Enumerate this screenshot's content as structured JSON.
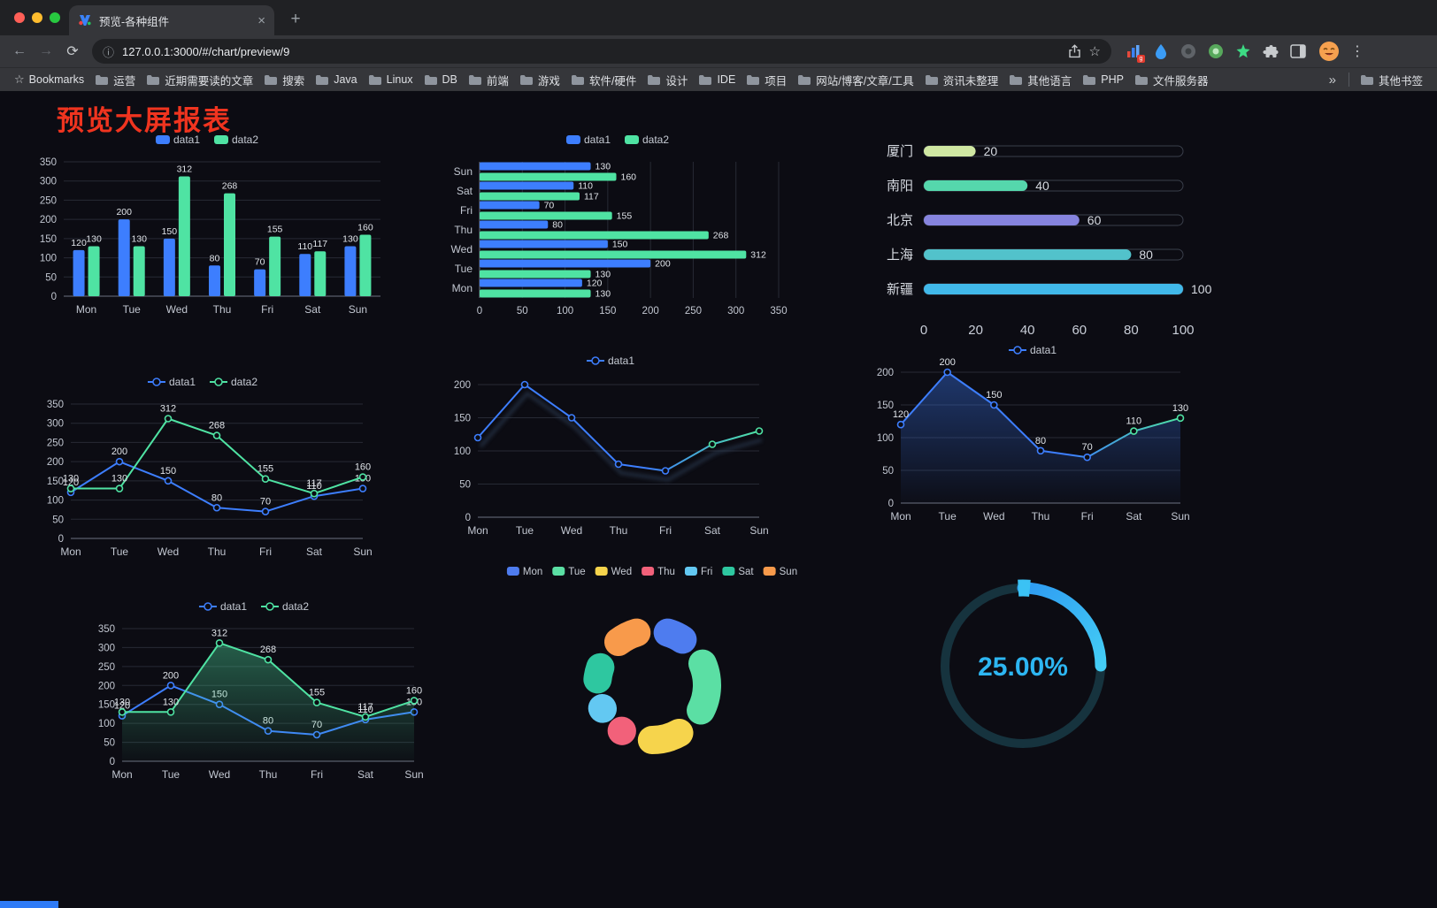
{
  "browser": {
    "tab_title": "预览-各种组件",
    "url": "127.0.0.1:3000/#/chart/preview/9",
    "icons": {
      "back": "←",
      "forward": "→",
      "reload": "⟳",
      "info": "ⓘ",
      "star": "☆",
      "menu": "⋮",
      "overflow": "»",
      "close": "×",
      "new_tab": "+"
    },
    "bookmarks_bar": {
      "label": "Bookmarks",
      "folders": [
        "运营",
        "近期需要读的文章",
        "搜索",
        "Java",
        "Linux",
        "DB",
        "前端",
        "游戏",
        "软件/硬件",
        "设计",
        "IDE",
        "项目",
        "网站/博客/文章/工具",
        "资讯未整理",
        "其他语言",
        "PHP",
        "文件服务器"
      ],
      "other": "其他书签"
    }
  },
  "page": {
    "title": "预览大屏报表",
    "title_color": "#f0341f"
  },
  "chart_data": [
    {
      "id": "bar-vertical",
      "type": "bar",
      "categories": [
        "Mon",
        "Tue",
        "Wed",
        "Thu",
        "Fri",
        "Sat",
        "Sun"
      ],
      "series": [
        {
          "name": "data1",
          "color": "#3D7EFE",
          "values": [
            120,
            200,
            150,
            80,
            70,
            110,
            130
          ]
        },
        {
          "name": "data2",
          "color": "#4FE3A3",
          "values": [
            130,
            130,
            312,
            268,
            155,
            117,
            160
          ]
        }
      ],
      "ylim": [
        0,
        350
      ],
      "ytick": 50,
      "value_labels": true,
      "legend_position": "top",
      "grid": true
    },
    {
      "id": "bar-horizontal",
      "type": "bar-horizontal",
      "categories": [
        "Mon",
        "Tue",
        "Wed",
        "Thu",
        "Fri",
        "Sat",
        "Sun"
      ],
      "series": [
        {
          "name": "data1",
          "color": "#3D7EFE",
          "values": [
            120,
            200,
            150,
            80,
            70,
            110,
            130
          ]
        },
        {
          "name": "data2",
          "color": "#4FE3A3",
          "values": [
            130,
            130,
            312,
            268,
            155,
            117,
            160
          ]
        }
      ],
      "xlim": [
        0,
        350
      ],
      "xtick": 50,
      "value_labels": true,
      "legend_position": "top",
      "grid": true
    },
    {
      "id": "capsule",
      "type": "capsule",
      "max": 100,
      "xticks": [
        0,
        20,
        40,
        60,
        80,
        100
      ],
      "items": [
        {
          "label": "厦门",
          "value": 20,
          "color": "#CFE7A2"
        },
        {
          "label": "南阳",
          "value": 40,
          "color": "#55D7AC"
        },
        {
          "label": "北京",
          "value": 60,
          "color": "#8684DE"
        },
        {
          "label": "上海",
          "value": 80,
          "color": "#52C2CB"
        },
        {
          "label": "新疆",
          "value": 100,
          "color": "#41B9EA"
        }
      ]
    },
    {
      "id": "line-dual",
      "type": "line",
      "categories": [
        "Mon",
        "Tue",
        "Wed",
        "Thu",
        "Fri",
        "Sat",
        "Sun"
      ],
      "series": [
        {
          "name": "data1",
          "color": "#3D7EFE",
          "values": [
            120,
            200,
            150,
            80,
            70,
            110,
            130
          ]
        },
        {
          "name": "data2",
          "color": "#4FE3A3",
          "values": [
            130,
            130,
            312,
            268,
            155,
            117,
            160
          ]
        }
      ],
      "ylim": [
        0,
        350
      ],
      "ytick": 50,
      "value_labels": true,
      "legend_position": "top",
      "grid": true
    },
    {
      "id": "line-gradient",
      "type": "line",
      "categories": [
        "Mon",
        "Tue",
        "Wed",
        "Thu",
        "Fri",
        "Sat",
        "Sun"
      ],
      "series": [
        {
          "name": "data1",
          "color": "#3D7EFE",
          "gradient": [
            "#3D7EFE",
            "#4FE3A3"
          ],
          "values": [
            120,
            200,
            150,
            80,
            70,
            110,
            130
          ]
        }
      ],
      "ylim": [
        0,
        200
      ],
      "ytick": 50,
      "value_labels": false,
      "shadow": true,
      "legend_position": "top",
      "grid": true
    },
    {
      "id": "line-area",
      "type": "line",
      "categories": [
        "Mon",
        "Tue",
        "Wed",
        "Thu",
        "Fri",
        "Sat",
        "Sun"
      ],
      "series": [
        {
          "name": "data1",
          "color": "#3D7EFE",
          "gradient": [
            "#3D7EFE",
            "#4FE3A3"
          ],
          "area": "#3D7EFE",
          "values": [
            120,
            200,
            150,
            80,
            70,
            110,
            130
          ]
        }
      ],
      "ylim": [
        0,
        200
      ],
      "ytick": 50,
      "value_labels": true,
      "legend_position": "top",
      "grid": true
    },
    {
      "id": "line-dual-area",
      "type": "line",
      "categories": [
        "Mon",
        "Tue",
        "Wed",
        "Thu",
        "Fri",
        "Sat",
        "Sun"
      ],
      "series": [
        {
          "name": "data1",
          "color": "#3D7EFE",
          "values": [
            120,
            200,
            150,
            80,
            70,
            110,
            130
          ]
        },
        {
          "name": "data2",
          "color": "#4FE3A3",
          "area": "#4FE3A3",
          "values": [
            130,
            130,
            312,
            268,
            155,
            117,
            160
          ]
        }
      ],
      "ylim": [
        0,
        350
      ],
      "ytick": 50,
      "value_labels": true,
      "legend_position": "top",
      "grid": true
    },
    {
      "id": "donut",
      "type": "pie",
      "categories": [
        "Mon",
        "Tue",
        "Wed",
        "Thu",
        "Fri",
        "Sat",
        "Sun"
      ],
      "values": [
        120,
        200,
        150,
        80,
        70,
        110,
        130
      ],
      "colors": [
        "#4E7CEF",
        "#5BDFA4",
        "#F6D44C",
        "#F2617A",
        "#63C8F2",
        "#2EC7A0",
        "#F89A4B"
      ],
      "legend_position": "top"
    },
    {
      "id": "gauge",
      "type": "gauge",
      "value": 25,
      "display": "25.00%",
      "color": "#2DB6F2"
    }
  ]
}
